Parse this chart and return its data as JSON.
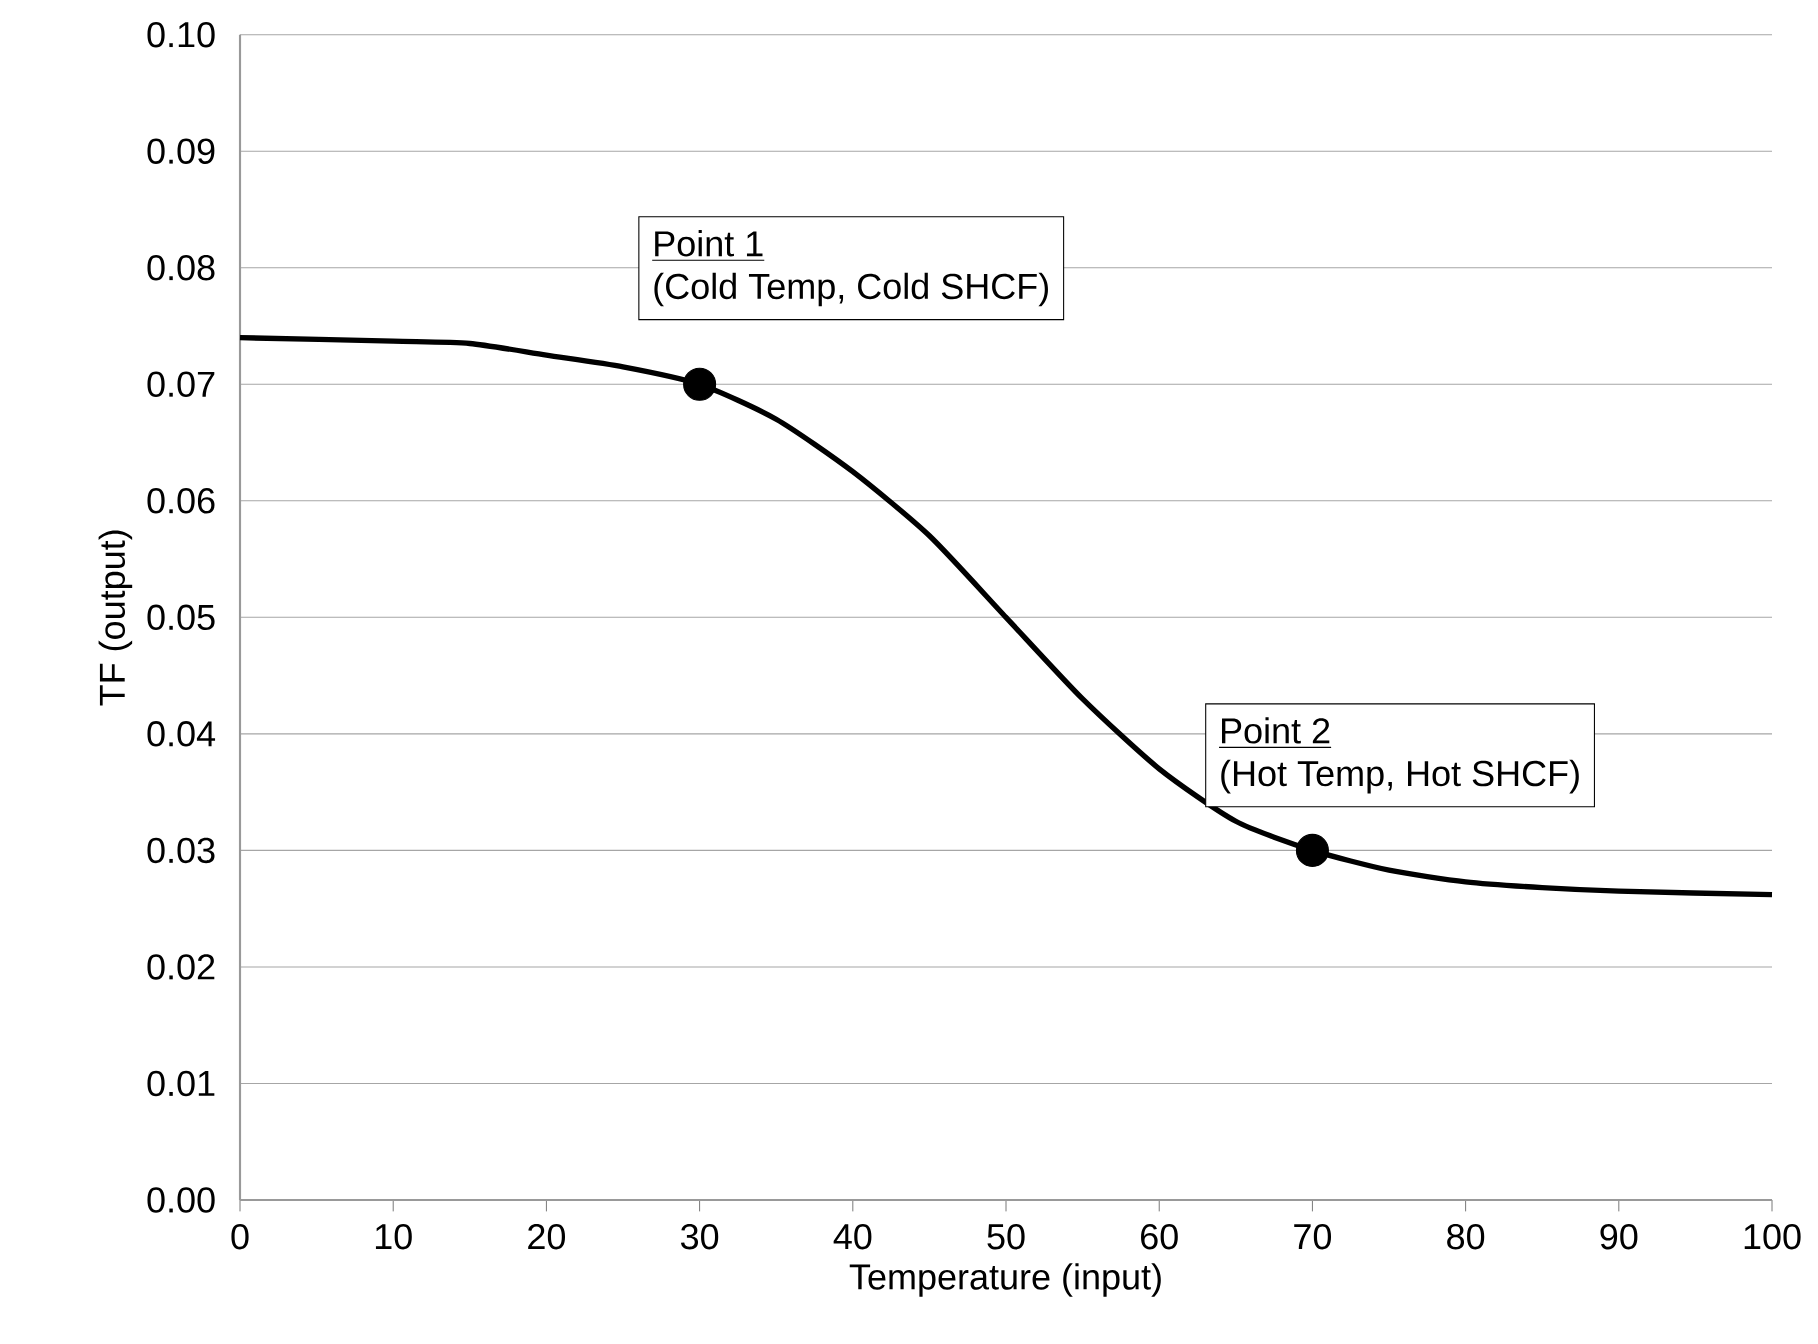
{
  "chart_data": {
    "type": "line",
    "xlabel": "Temperature (input)",
    "ylabel": "TF (output)",
    "xlim": [
      0,
      100
    ],
    "xticks": [
      0,
      10,
      20,
      30,
      40,
      50,
      60,
      70,
      80,
      90,
      100
    ],
    "ylim": [
      0,
      0.1
    ],
    "yticks": [
      {
        "value": 0,
        "label": "0.00"
      },
      {
        "value": 0.01,
        "label": "0.01"
      },
      {
        "value": 0.02,
        "label": "0.02"
      },
      {
        "value": 0.03,
        "label": "0.03"
      },
      {
        "value": 0.04,
        "label": "0.04"
      },
      {
        "value": 0.05,
        "label": "0.05"
      },
      {
        "value": 0.06,
        "label": "0.06"
      },
      {
        "value": 0.07,
        "label": "0.07"
      },
      {
        "value": 0.08,
        "label": "0.08"
      },
      {
        "value": 0.09,
        "label": "0.09"
      },
      {
        "value": 0.1,
        "label": "0.10"
      }
    ],
    "grid": "y",
    "series": [
      {
        "color": "#000000",
        "x": [
          0,
          10,
          15,
          20,
          25,
          30,
          35,
          40,
          45,
          50,
          55,
          60,
          65,
          70,
          75,
          80,
          85,
          90,
          100
        ],
        "values": [
          0.074,
          0.0737,
          0.0735,
          0.0725,
          0.0715,
          0.07,
          0.067,
          0.0625,
          0.057,
          0.05,
          0.043,
          0.037,
          0.0325,
          0.03,
          0.0283,
          0.0273,
          0.0268,
          0.0265,
          0.0262
        ]
      },
      {
        "type": "scatter",
        "color": "#000000",
        "marker": "circle",
        "x": [
          30,
          70
        ],
        "values": [
          0.07,
          0.03
        ]
      }
    ],
    "annotations": [
      "Point 1",
      "(Cold Temp, Cold SHCF)",
      "Point 2",
      "(Hot Temp, Hot SHCF)"
    ]
  }
}
